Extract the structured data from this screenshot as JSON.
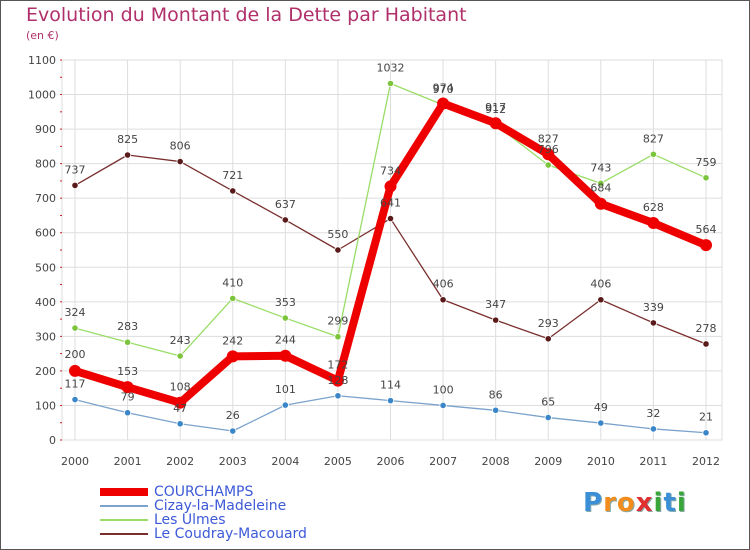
{
  "header": {
    "title": "Evolution du Montant de la Dette par Habitant",
    "subtitle": "(en €)"
  },
  "logo": {
    "letters": [
      "P",
      "r",
      "o",
      "x",
      "i",
      "t",
      "i"
    ],
    "colors": [
      "#3a8fd6",
      "#f28c1c",
      "#f28c1c",
      "#e03030",
      "#3aa63a",
      "#3a8fd6",
      "#3aa63a"
    ]
  },
  "chart_data": {
    "type": "line",
    "title": "Evolution du Montant de la Dette par Habitant",
    "ylabel": "(en €)",
    "xlabel": "",
    "ylim": [
      0,
      1100
    ],
    "yticks": [
      0,
      100,
      200,
      300,
      400,
      500,
      600,
      700,
      800,
      900,
      1000,
      1100
    ],
    "grid": true,
    "legend_position": "bottom-left",
    "categories": [
      "2000",
      "2001",
      "2002",
      "2003",
      "2004",
      "2005",
      "2006",
      "2007",
      "2008",
      "2009",
      "2010",
      "2011",
      "2012"
    ],
    "series": [
      {
        "name": "COURCHAMPS",
        "color": "#ee0000",
        "marker": "#ee0000",
        "values": [
          200,
          153,
          108,
          242,
          244,
          172,
          734,
          974,
          917,
          827,
          684,
          628,
          564
        ]
      },
      {
        "name": "Cizay-la-Madeleine",
        "color": "#7ba3cc",
        "marker": "#3b86c8",
        "values": [
          117,
          79,
          47,
          26,
          101,
          128,
          114,
          100,
          86,
          65,
          49,
          32,
          21
        ]
      },
      {
        "name": "Les Ulmes",
        "color": "#99dd66",
        "marker": "#7cc43c",
        "values": [
          324,
          283,
          243,
          410,
          353,
          299,
          1032,
          970,
          912,
          796,
          743,
          827,
          759
        ]
      },
      {
        "name": "Le Coudray-Macouard",
        "color": "#7a2f2f",
        "marker": "#5a1a1a",
        "values": [
          737,
          825,
          806,
          721,
          637,
          550,
          641,
          406,
          347,
          293,
          406,
          339,
          278
        ]
      }
    ]
  }
}
